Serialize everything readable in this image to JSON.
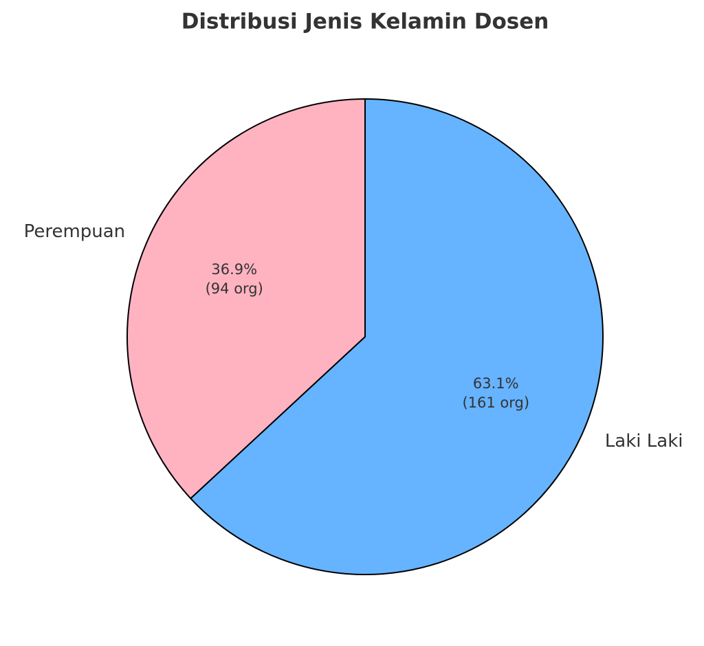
{
  "chart_data": {
    "type": "pie",
    "title": "Distribusi Jenis Kelamin Dosen",
    "categories": [
      "Laki Laki",
      "Perempuan"
    ],
    "values": [
      63.1,
      36.9
    ],
    "value_labels": [
      "63.1%",
      "36.9%"
    ],
    "counts": [
      161,
      94
    ],
    "count_labels": [
      "(161 org)",
      "(94 org)"
    ],
    "colors": [
      "#66b3ff",
      "#ffb3c1"
    ]
  }
}
